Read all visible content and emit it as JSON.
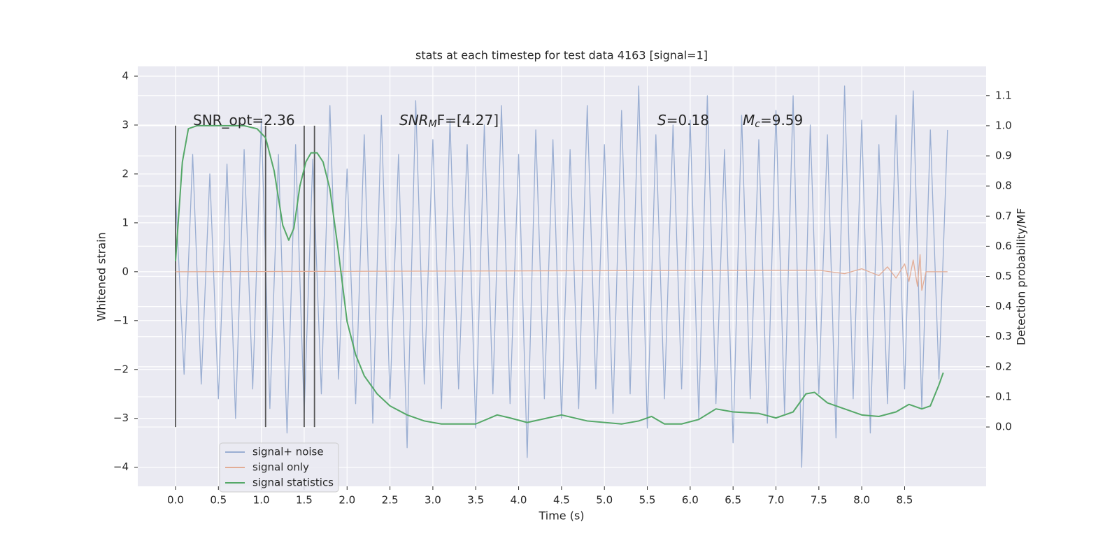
{
  "chart_data": {
    "type": "line",
    "title": "stats at each timestep for test data 4163 [signal=1]",
    "xlabel": "Time (s)",
    "ylabel": "Whitened strain",
    "y2label": "Detection probability/MF",
    "xlim": [
      -0.44,
      9.45
    ],
    "ylim": [
      -4.39,
      4.2
    ],
    "y2lim": [
      -0.197,
      1.197
    ],
    "xticks": [
      {
        "value": 0,
        "label": "0.0"
      },
      0.5,
      {
        "value": 1,
        "label": "1.0"
      },
      1.5,
      {
        "value": 2,
        "label": "2.0"
      },
      2.5,
      {
        "value": 3,
        "label": "3.0"
      },
      3.5,
      {
        "value": 4,
        "label": "4.0"
      },
      4.5,
      {
        "value": 5,
        "label": "5.0"
      },
      5.5,
      {
        "value": 6,
        "label": "6.0"
      },
      6.5,
      {
        "value": 7,
        "label": "7.0"
      },
      7.5,
      {
        "value": 8,
        "label": "8.0"
      },
      8.5
    ],
    "yticks": [
      {
        "value": -4,
        "label": "−4"
      },
      {
        "value": -3,
        "label": "−3"
      },
      {
        "value": -2,
        "label": "−2"
      },
      {
        "value": -1,
        "label": "−1"
      },
      0,
      1,
      2,
      3,
      4
    ],
    "y2ticks": [
      {
        "value": 0,
        "label": "0.0"
      },
      0.1,
      0.2,
      0.3,
      0.4,
      0.5,
      0.6,
      0.7,
      0.8,
      0.9,
      {
        "value": 1,
        "label": "1.0"
      },
      1.1
    ],
    "grid": true,
    "legend": "lower left",
    "vlines_x": [
      0,
      1.05,
      1.5,
      1.62
    ],
    "vlines_y2": [
      0,
      1
    ],
    "vline_color": "#555555",
    "annotations": [
      {
        "text": "SNR_opt=2.36"
      },
      {
        "italic": "SNR",
        "sub": "M",
        "text": "F=[4.27]"
      },
      {
        "italic": "S",
        "text": "=0.18"
      },
      {
        "italic": "M",
        "sub": "c",
        "text": "=9.59"
      }
    ],
    "series": [
      {
        "name": "signal+ noise",
        "color": "#9aaed2",
        "axis": "y",
        "x": [
          0.0,
          0.1,
          0.2,
          0.3,
          0.4,
          0.5,
          0.6,
          0.7,
          0.8,
          0.9,
          1.0,
          1.1,
          1.2,
          1.3,
          1.4,
          1.5,
          1.6,
          1.7,
          1.8,
          1.9,
          2.0,
          2.1,
          2.2,
          2.3,
          2.4,
          2.5,
          2.6,
          2.7,
          2.8,
          2.9,
          3.0,
          3.1,
          3.2,
          3.3,
          3.4,
          3.5,
          3.6,
          3.7,
          3.8,
          3.9,
          4.0,
          4.1,
          4.2,
          4.3,
          4.4,
          4.5,
          4.6,
          4.7,
          4.8,
          4.9,
          5.0,
          5.1,
          5.2,
          5.3,
          5.4,
          5.5,
          5.6,
          5.7,
          5.8,
          5.9,
          6.0,
          6.1,
          6.2,
          6.3,
          6.4,
          6.5,
          6.6,
          6.7,
          6.8,
          6.9,
          7.0,
          7.1,
          7.2,
          7.3,
          7.4,
          7.5,
          7.6,
          7.7,
          7.8,
          7.9,
          8.0,
          8.1,
          8.2,
          8.3,
          8.4,
          8.5,
          8.6,
          8.7,
          8.8,
          8.9,
          9.0
        ],
        "values": [
          1.6,
          -2.1,
          2.4,
          -2.3,
          2.0,
          -2.6,
          2.2,
          -3.0,
          2.5,
          -2.4,
          3.1,
          -2.8,
          2.4,
          -3.3,
          2.6,
          -2.9,
          2.3,
          -2.5,
          3.4,
          -2.2,
          2.1,
          -2.7,
          2.8,
          -3.1,
          3.2,
          -2.6,
          2.4,
          -3.6,
          3.5,
          -2.3,
          2.7,
          -2.8,
          3.1,
          -2.4,
          2.6,
          -3.2,
          3.0,
          -2.5,
          3.4,
          -2.7,
          2.4,
          -3.8,
          2.9,
          -2.6,
          2.7,
          -3.0,
          2.5,
          -2.8,
          3.4,
          -2.4,
          2.6,
          -2.9,
          3.3,
          -2.5,
          3.8,
          -3.2,
          2.8,
          -2.6,
          3.0,
          -2.4,
          3.1,
          -3.0,
          3.6,
          -2.7,
          2.5,
          -3.5,
          3.2,
          -2.6,
          2.7,
          -3.1,
          3.3,
          -2.9,
          3.6,
          -4.0,
          3.0,
          -2.5,
          2.8,
          -3.4,
          3.8,
          -2.6,
          3.1,
          -3.3,
          2.6,
          -2.7,
          3.2,
          -2.4,
          3.7,
          -2.8,
          2.9,
          -2.2,
          2.9
        ]
      },
      {
        "name": "signal only",
        "color": "#e3ad96",
        "axis": "y",
        "x": [
          0,
          7.5,
          7.8,
          8.0,
          8.2,
          8.3,
          8.4,
          8.5,
          8.55,
          8.6,
          8.65,
          8.68,
          8.7,
          8.75,
          9.0
        ],
        "values": [
          0,
          0.03,
          -0.04,
          0.06,
          -0.08,
          0.1,
          -0.13,
          0.16,
          -0.2,
          0.24,
          -0.3,
          0.35,
          -0.38,
          0,
          0
        ]
      },
      {
        "name": "signal statistics",
        "color": "#55a868",
        "axis": "y2",
        "x": [
          0.0,
          0.08,
          0.15,
          0.25,
          0.5,
          0.8,
          0.95,
          1.05,
          1.15,
          1.25,
          1.32,
          1.38,
          1.45,
          1.52,
          1.58,
          1.65,
          1.72,
          1.8,
          1.9,
          2.0,
          2.1,
          2.2,
          2.35,
          2.5,
          2.7,
          2.9,
          3.1,
          3.5,
          3.75,
          3.9,
          4.1,
          4.5,
          4.8,
          5.2,
          5.4,
          5.55,
          5.7,
          5.9,
          6.1,
          6.3,
          6.5,
          6.8,
          7.0,
          7.2,
          7.35,
          7.45,
          7.6,
          7.8,
          8.0,
          8.2,
          8.4,
          8.55,
          8.7,
          8.8,
          8.9,
          8.95
        ],
        "values": [
          0.55,
          0.88,
          0.99,
          1.0,
          1.0,
          1.0,
          0.99,
          0.96,
          0.85,
          0.67,
          0.62,
          0.66,
          0.8,
          0.88,
          0.91,
          0.91,
          0.88,
          0.79,
          0.58,
          0.35,
          0.24,
          0.17,
          0.11,
          0.07,
          0.04,
          0.02,
          0.01,
          0.01,
          0.04,
          0.03,
          0.015,
          0.04,
          0.02,
          0.01,
          0.02,
          0.035,
          0.01,
          0.01,
          0.025,
          0.06,
          0.05,
          0.045,
          0.03,
          0.05,
          0.11,
          0.115,
          0.08,
          0.06,
          0.04,
          0.035,
          0.05,
          0.075,
          0.06,
          0.07,
          0.14,
          0.18
        ]
      }
    ]
  }
}
